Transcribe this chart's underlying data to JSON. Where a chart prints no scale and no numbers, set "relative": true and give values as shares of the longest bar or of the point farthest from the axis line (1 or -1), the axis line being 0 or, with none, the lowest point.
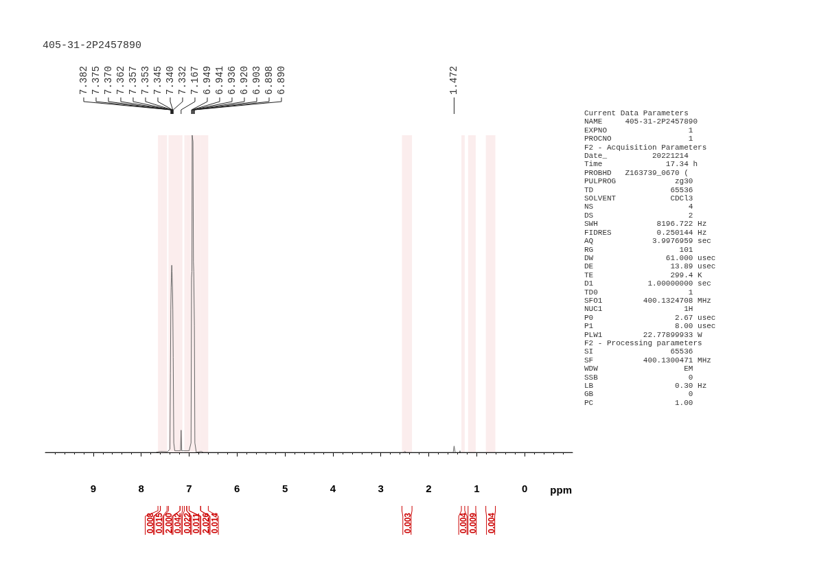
{
  "chart_data": {
    "type": "line",
    "title": "405-31-2P2457890",
    "xlabel": "ppm",
    "relative": true,
    "grid": false,
    "marker": "none",
    "xlim": [
      10,
      -1
    ],
    "xticks": [
      9,
      8,
      7,
      6,
      5,
      4,
      3,
      2,
      1,
      0
    ],
    "x": [
      10,
      7.7,
      7.6,
      7.45,
      7.4,
      7.39,
      7.382,
      7.375,
      7.37,
      7.362,
      7.357,
      7.353,
      7.345,
      7.34,
      7.332,
      7.32,
      7.3,
      7.18,
      7.167,
      7.155,
      7.0,
      6.96,
      6.949,
      6.941,
      6.936,
      6.92,
      6.91,
      6.903,
      6.898,
      6.89,
      6.88,
      6.85,
      6.75,
      6.7,
      2.52,
      2.5,
      2.48,
      1.49,
      1.472,
      1.45,
      1.36,
      1.35,
      1.34,
      -1
    ],
    "series": [
      {
        "color": "#666666",
        "values": [
          0,
          0,
          0.003,
          0.002,
          0.01,
          0.25,
          0.45,
          0.52,
          0.55,
          0.59,
          0.57,
          0.55,
          0.5,
          0.45,
          0.3,
          0.03,
          0.005,
          0.005,
          0.07,
          0.005,
          0.005,
          0.03,
          0.55,
          0.57,
          1.0,
          0.98,
          0.6,
          0.57,
          0.5,
          0.4,
          0.03,
          0,
          0.003,
          0,
          0,
          0.004,
          0,
          0,
          0.02,
          0,
          0,
          0.005,
          0,
          0
        ]
      }
    ],
    "annotations": [
      {
        "text": "7.382",
        "x": 7.382
      },
      {
        "text": "7.375",
        "x": 7.375
      },
      {
        "text": "7.370",
        "x": 7.37
      },
      {
        "text": "7.362",
        "x": 7.362
      },
      {
        "text": "7.357",
        "x": 7.357
      },
      {
        "text": "7.353",
        "x": 7.353
      },
      {
        "text": "7.345",
        "x": 7.345
      },
      {
        "text": "7.340",
        "x": 7.34
      },
      {
        "text": "7.332",
        "x": 7.332
      },
      {
        "text": "7.167",
        "x": 7.167
      },
      {
        "text": "6.949",
        "x": 6.949
      },
      {
        "text": "6.941",
        "x": 6.941
      },
      {
        "text": "6.936",
        "x": 6.936
      },
      {
        "text": "6.920",
        "x": 6.92
      },
      {
        "text": "6.903",
        "x": 6.903
      },
      {
        "text": "6.898",
        "x": 6.898
      },
      {
        "text": "6.890",
        "x": 6.89
      },
      {
        "text": "1.472",
        "x": 1.472
      },
      "Current Data Parameters",
      "NAME     405-31-2P2457890",
      "EXPNO                  1",
      "PROCNO                 1",
      "F2 - Acquisition Parameters",
      "Date_          20221214",
      "Time              17.34 h",
      "PROBHD   Z163739_0670 (",
      "PULPROG             zg30",
      "TD                 65536",
      "SOLVENT            CDCl3",
      "NS                     4",
      "DS                     2",
      "SWH             8196.722 Hz",
      "FIDRES          0.250144 Hz",
      "AQ             3.9976959 sec",
      "RG                   101",
      "DW                61.000 usec",
      "DE                 13.89 usec",
      "TE                 299.4 K",
      "D1            1.00000000 sec",
      "TD0                    1",
      "SFO1         400.1324708 MHz",
      "NUC1                  1H",
      "P0                  2.67 usec",
      "P1                  8.00 usec",
      "PLW1         22.77899933 W",
      "F2 - Processing parameters",
      "SI                 65536",
      "SF           400.1300471 MHz",
      "WDW                   EM",
      "SSB                    0",
      "LB                  0.30 Hz",
      "GB                     0",
      "PC                  1.00"
    ],
    "bands": [
      {
        "axis": "x",
        "from": 7.65,
        "to": 7.6,
        "label": "0.008",
        "color": "#cc0000"
      },
      {
        "axis": "x",
        "from": 7.6,
        "to": 7.46,
        "label": "0.015",
        "color": "#cc0000"
      },
      {
        "axis": "x",
        "from": 7.43,
        "to": 7.19,
        "label": "2.000",
        "color": "#cc0000"
      },
      {
        "axis": "x",
        "from": 7.19,
        "to": 7.14,
        "label": "0.042",
        "color": "#cc0000"
      },
      {
        "axis": "x",
        "from": 7.1,
        "to": 7.05,
        "label": "0.022",
        "color": "#cc0000"
      },
      {
        "axis": "x",
        "from": 7.05,
        "to": 7.0,
        "label": "0.011",
        "color": "#cc0000"
      },
      {
        "axis": "x",
        "from": 7.0,
        "to": 6.76,
        "label": "2.026",
        "color": "#cc0000"
      },
      {
        "axis": "x",
        "from": 6.76,
        "to": 6.6,
        "label": "0.014",
        "color": "#cc0000"
      },
      {
        "axis": "x",
        "from": 2.56,
        "to": 2.35,
        "label": "0.003",
        "color": "#cc0000"
      },
      {
        "axis": "x",
        "from": 1.32,
        "to": 1.25,
        "label": "0.004",
        "color": "#cc0000"
      },
      {
        "axis": "x",
        "from": 1.18,
        "to": 1.02,
        "label": "0.009",
        "color": "#cc0000"
      },
      {
        "axis": "x",
        "from": 0.81,
        "to": 0.61,
        "label": "0.004",
        "color": "#cc0000"
      }
    ]
  }
}
